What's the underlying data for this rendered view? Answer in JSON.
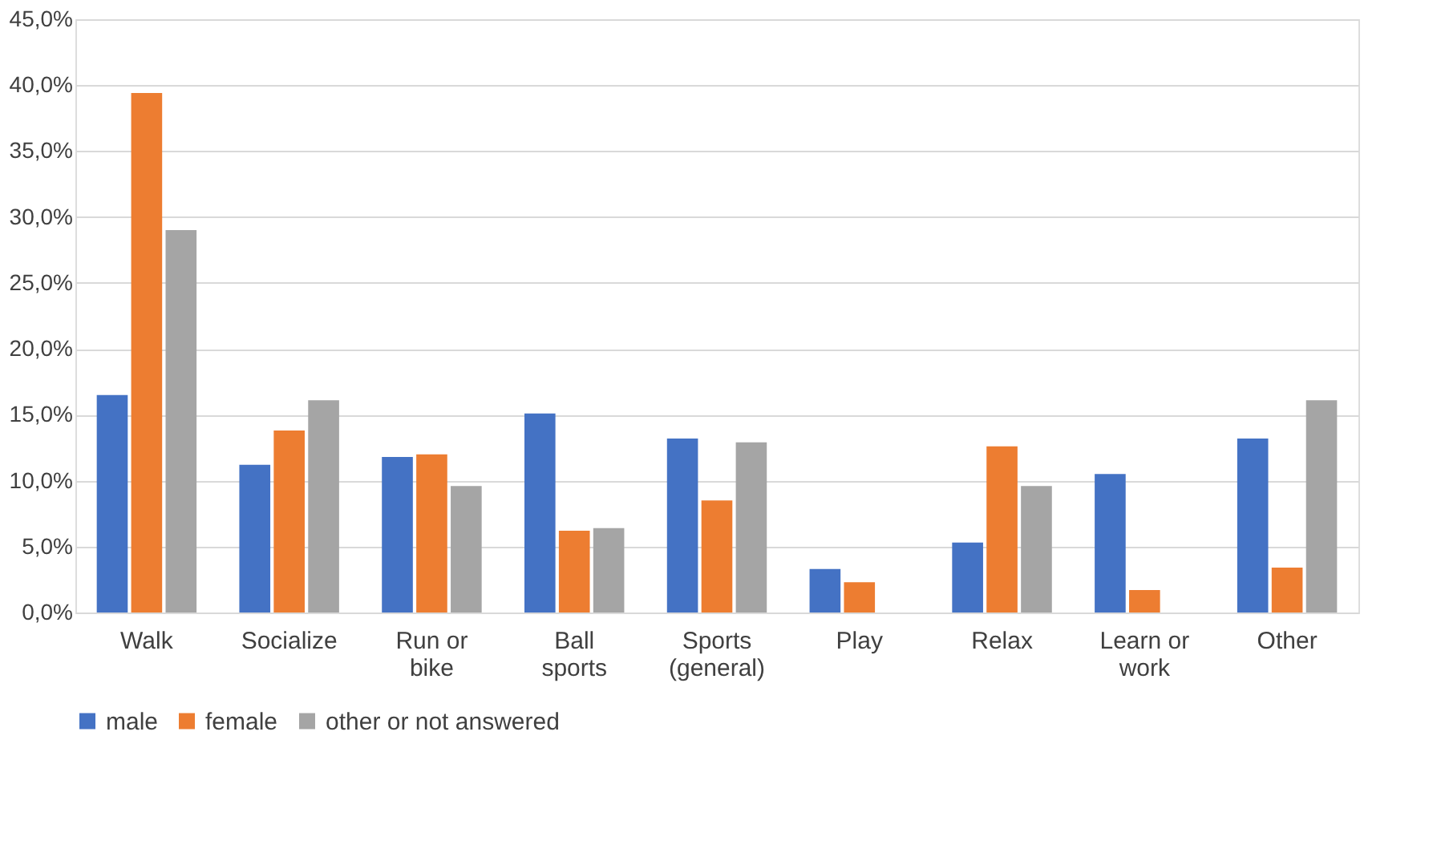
{
  "chart_data": {
    "type": "bar",
    "categories": [
      "Walk",
      "Socialize",
      "Run or bike",
      "Ball sports",
      "Sports (general)",
      "Play",
      "Relax",
      "Learn or work",
      "Other"
    ],
    "series": [
      {
        "name": "male",
        "color": "#4472c4",
        "values": [
          16.5,
          11.2,
          11.8,
          15.1,
          13.2,
          3.3,
          5.3,
          10.5,
          13.2
        ]
      },
      {
        "name": "female",
        "color": "#ed7d31",
        "values": [
          39.4,
          13.8,
          12.0,
          6.2,
          8.5,
          2.3,
          12.6,
          1.7,
          3.4
        ]
      },
      {
        "name": "other or not answered",
        "color": "#a5a5a5",
        "values": [
          29.0,
          16.1,
          9.6,
          6.4,
          12.9,
          0,
          9.6,
          0,
          16.1
        ]
      }
    ],
    "ylim": [
      0,
      45
    ],
    "yticks": [
      {
        "value": 0,
        "label": "0,0%"
      },
      {
        "value": 5,
        "label": "5,0%"
      },
      {
        "value": 10,
        "label": "10,0%"
      },
      {
        "value": 15,
        "label": "15,0%"
      },
      {
        "value": 20,
        "label": "20,0%"
      },
      {
        "value": 25,
        "label": "25,0%"
      },
      {
        "value": 30,
        "label": "30,0%"
      },
      {
        "value": 35,
        "label": "35,0%"
      },
      {
        "value": 40,
        "label": "40,0%"
      },
      {
        "value": 45,
        "label": "45,0%"
      }
    ],
    "grid": "y",
    "legend": "bottom"
  }
}
